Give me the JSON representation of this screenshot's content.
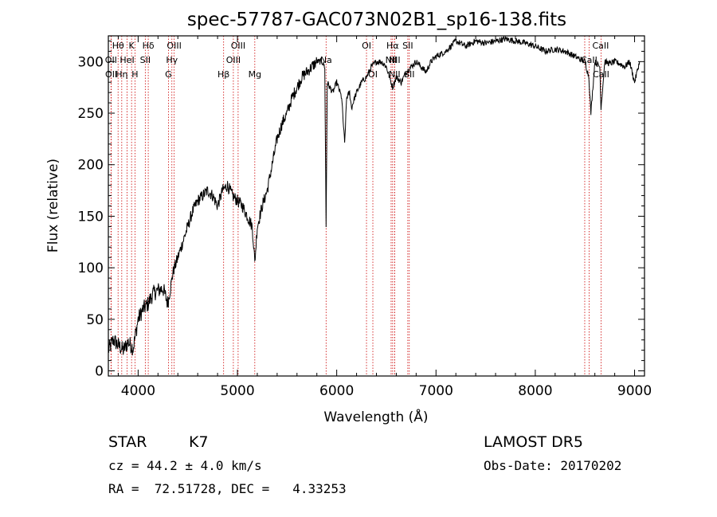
{
  "chart_data": {
    "type": "line",
    "title": "spec-57787-GAC073N02B1_sp16-138.fits",
    "xlabel": "Wavelength (Å)",
    "ylabel": "Flux (relative)",
    "xlim": [
      3700,
      9100
    ],
    "ylim": [
      -5,
      325
    ],
    "x_ticks": [
      4000,
      5000,
      6000,
      7000,
      8000,
      9000
    ],
    "y_ticks": [
      0,
      50,
      100,
      150,
      200,
      250,
      300
    ],
    "grid": false,
    "line_color": "#000000",
    "marker_color": "#cc0000",
    "series": [
      {
        "x": [
          3700,
          3750,
          3800,
          3850,
          3900,
          3950,
          4000,
          4050,
          4100,
          4150,
          4200,
          4250,
          4300,
          4350,
          4400,
          4450,
          4500,
          4550,
          4600,
          4650,
          4700,
          4750,
          4800,
          4850,
          4900,
          4950,
          5000,
          5050,
          5100,
          5150,
          5175,
          5200,
          5250,
          5300,
          5350,
          5400,
          5450,
          5500,
          5550,
          5600,
          5650,
          5700,
          5750,
          5800,
          5850,
          5880,
          5893,
          5905,
          5930,
          5960,
          6000,
          6050,
          6080,
          6100,
          6130,
          6150,
          6180,
          6200,
          6250,
          6300,
          6350,
          6400,
          6450,
          6500,
          6563,
          6600,
          6650,
          6700,
          6750,
          6800,
          6850,
          6900,
          6950,
          7000,
          7100,
          7200,
          7300,
          7400,
          7500,
          7600,
          7700,
          7800,
          7900,
          8000,
          8100,
          8200,
          8300,
          8400,
          8500,
          8540,
          8560,
          8600,
          8650,
          8662,
          8700,
          8750,
          8800,
          8850,
          8900,
          8950,
          9000,
          9050
        ],
        "values": [
          20,
          30,
          25,
          20,
          28,
          22,
          50,
          60,
          65,
          75,
          78,
          80,
          65,
          95,
          110,
          125,
          140,
          155,
          165,
          170,
          175,
          170,
          160,
          175,
          180,
          170,
          165,
          160,
          150,
          140,
          105,
          140,
          160,
          175,
          200,
          225,
          240,
          250,
          265,
          275,
          285,
          290,
          295,
          300,
          300,
          295,
          140,
          280,
          275,
          270,
          280,
          265,
          220,
          265,
          270,
          255,
          265,
          270,
          280,
          285,
          295,
          300,
          300,
          295,
          275,
          285,
          280,
          290,
          295,
          300,
          295,
          290,
          300,
          305,
          310,
          320,
          315,
          320,
          318,
          320,
          322,
          320,
          318,
          315,
          310,
          312,
          310,
          305,
          300,
          285,
          250,
          300,
          295,
          255,
          300,
          298,
          300,
          298,
          295,
          300,
          280,
          300
        ]
      }
    ],
    "lines": [
      {
        "label": "Hθ",
        "x": 3798,
        "row": 0,
        "dx": 0
      },
      {
        "label": "K",
        "x": 3934,
        "row": 0,
        "dx": 0
      },
      {
        "label": "Hδ",
        "x": 4102,
        "row": 0,
        "dx": 0
      },
      {
        "label": "OIII",
        "x": 4363,
        "row": 0,
        "dx": 0
      },
      {
        "label": "OIII",
        "x": 5007,
        "row": 0,
        "dx": 0
      },
      {
        "label": "OI",
        "x": 6300,
        "row": 0,
        "dx": 0
      },
      {
        "label": "Hα",
        "x": 6563,
        "row": 0,
        "dx": 0
      },
      {
        "label": "SII",
        "x": 6716,
        "row": 0,
        "dx": 0
      },
      {
        "label": "CaII",
        "x": 8498,
        "row": 0,
        "dx": 20
      },
      {
        "label": "OII",
        "x": 3727,
        "row": 1,
        "dx": 0
      },
      {
        "label": "HeI",
        "x": 3889,
        "row": 1,
        "dx": 0
      },
      {
        "label": "SII",
        "x": 4072,
        "row": 1,
        "dx": 0
      },
      {
        "label": "Hγ",
        "x": 4340,
        "row": 1,
        "dx": 0
      },
      {
        "label": "OIII",
        "x": 4959,
        "row": 1,
        "dx": 0
      },
      {
        "label": "Na",
        "x": 5893,
        "row": 1,
        "dx": 0
      },
      {
        "label": "NII",
        "x": 6548,
        "row": 1,
        "dx": 0
      },
      {
        "label": "NII",
        "x": 6583,
        "row": 1,
        "dx": 0
      },
      {
        "label": "CaII",
        "x": 8542,
        "row": 1,
        "dx": 0
      },
      {
        "label": "OII",
        "x": 3729,
        "row": 2,
        "dx": 0
      },
      {
        "label": "Hη",
        "x": 3835,
        "row": 2,
        "dx": 0
      },
      {
        "label": "H",
        "x": 3968,
        "row": 2,
        "dx": 0
      },
      {
        "label": "G",
        "x": 4305,
        "row": 2,
        "dx": 0
      },
      {
        "label": "Hβ",
        "x": 4861,
        "row": 2,
        "dx": 0
      },
      {
        "label": "Mg",
        "x": 5175,
        "row": 2,
        "dx": 0
      },
      {
        "label": "OI",
        "x": 6364,
        "row": 2,
        "dx": 0
      },
      {
        "label": "NII",
        "x": 6583,
        "row": 2,
        "dx": 0
      },
      {
        "label": "SII",
        "x": 6731,
        "row": 2,
        "dx": 0
      },
      {
        "label": "CaII",
        "x": 8662,
        "row": 2,
        "dx": 0
      }
    ]
  },
  "info": {
    "object_class": "STAR",
    "subclass": "K7",
    "survey": "LAMOST DR5",
    "cz": "cz = 44.2 ± 4.0 km/s",
    "obs_date": "Obs-Date: 20170202",
    "coords": "RA =  72.51728, DEC =   4.33253"
  }
}
